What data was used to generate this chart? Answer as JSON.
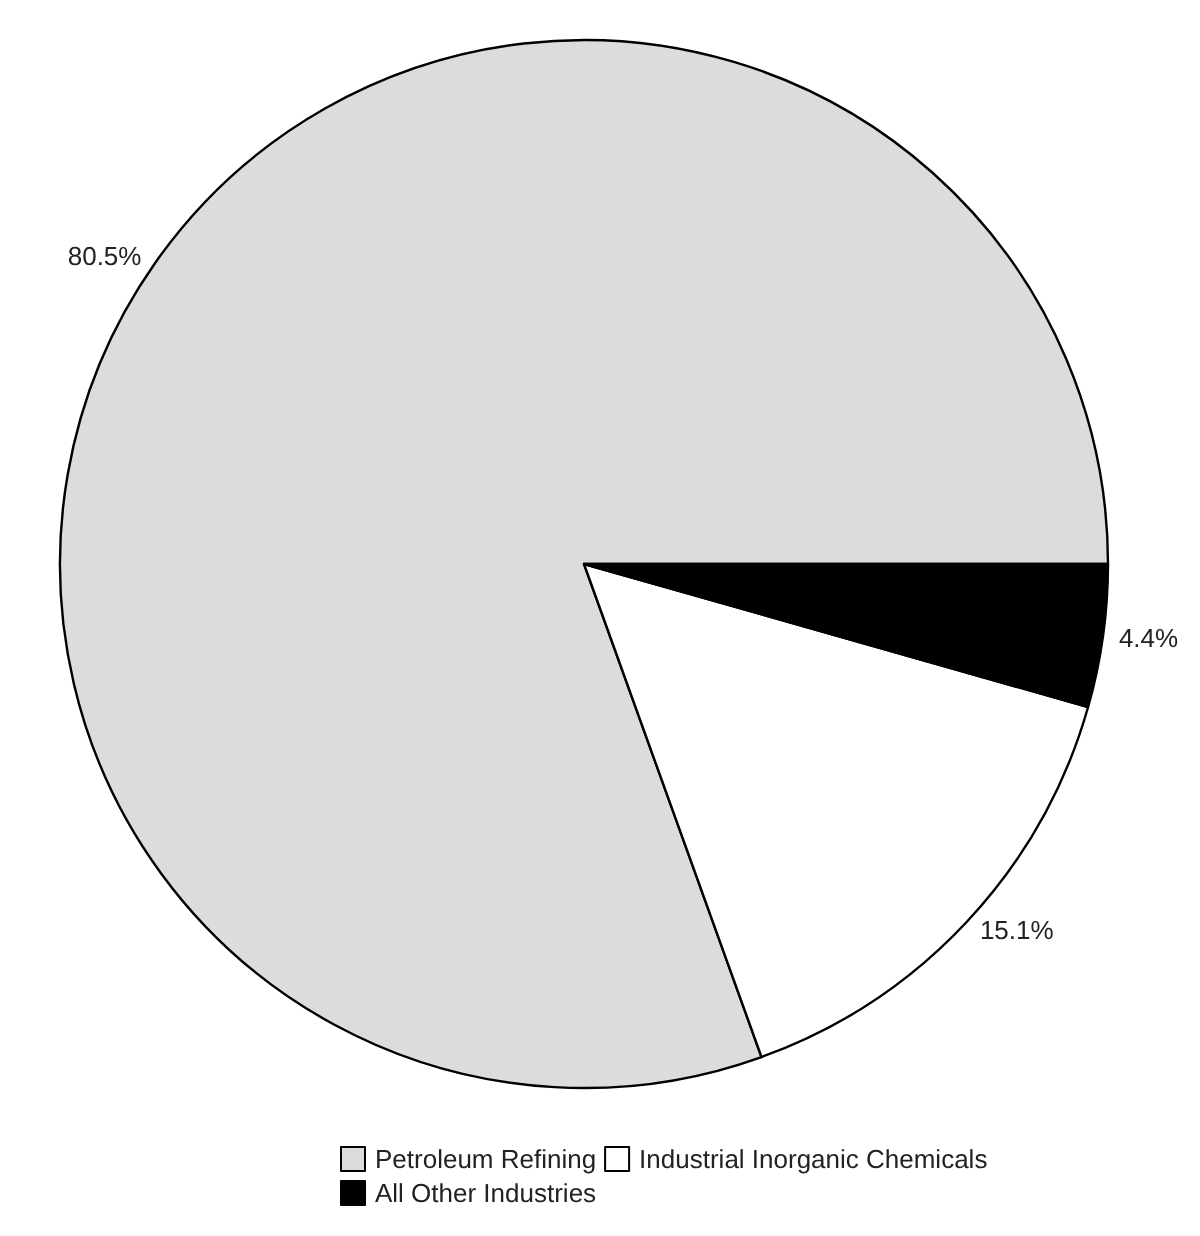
{
  "chart_data": {
    "type": "pie",
    "categories": [
      "Petroleum Refining",
      "Industrial Inorganic Chemicals",
      "All Other Industries"
    ],
    "values": [
      80.5,
      15.1,
      4.4
    ],
    "colors": [
      "#dcdcdc",
      "#ffffff",
      "#000000"
    ],
    "value_labels": [
      "80.5%",
      "15.1%",
      "4.4%"
    ],
    "legend": "bottom"
  }
}
